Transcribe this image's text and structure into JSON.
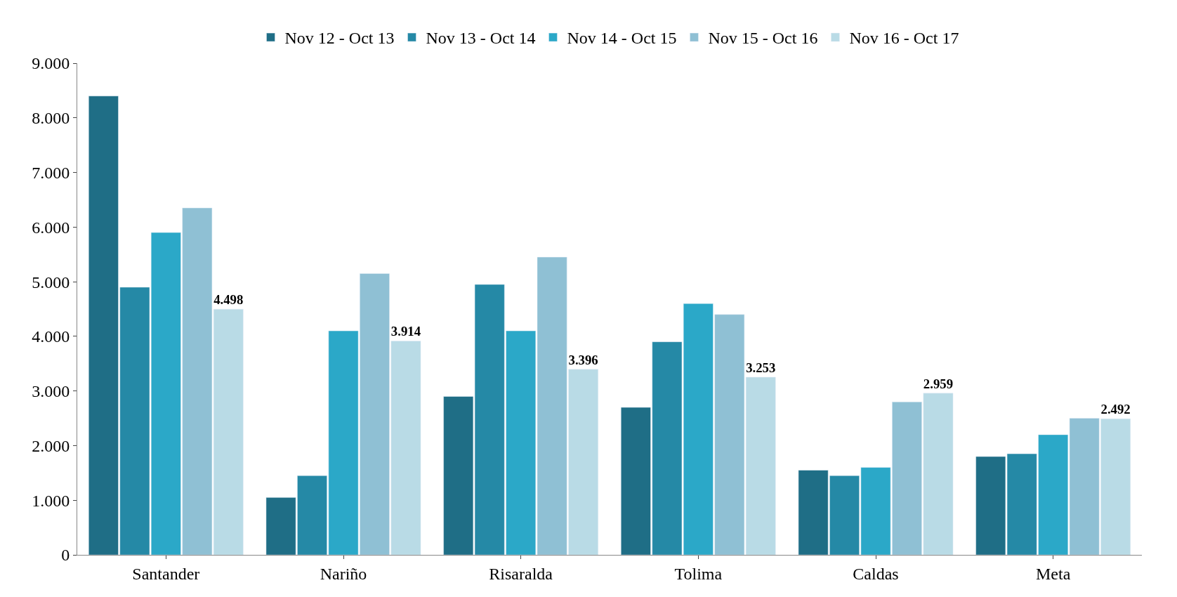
{
  "chart_data": {
    "type": "bar",
    "categories": [
      "Santander",
      "Nariño",
      "Risaralda",
      "Tolima",
      "Caldas",
      "Meta"
    ],
    "series": [
      {
        "name": "Nov 12 - Oct 13",
        "color": "#1f6e86",
        "values": [
          8400,
          1050,
          2900,
          2700,
          1550,
          1800
        ]
      },
      {
        "name": "Nov 13 - Oct 14",
        "color": "#2589a6",
        "values": [
          4900,
          1450,
          4950,
          3900,
          1450,
          1850
        ]
      },
      {
        "name": "Nov 14 - Oct 15",
        "color": "#2ba8c8",
        "values": [
          5900,
          4100,
          4100,
          4600,
          1600,
          2200
        ]
      },
      {
        "name": "Nov 15 - Oct 16",
        "color": "#8fc0d4",
        "values": [
          6350,
          5150,
          5450,
          4400,
          2800,
          2500
        ]
      },
      {
        "name": "Nov 16 - Oct 17",
        "color": "#b9dbe6",
        "values": [
          4498,
          3914,
          3396,
          3253,
          2959,
          2492
        ],
        "value_labels": [
          "4.498",
          "3.914",
          "3.396",
          "3.253",
          "2.959",
          "2.492"
        ]
      }
    ],
    "ylim": [
      0,
      9000
    ],
    "yticks": [
      {
        "value": 0,
        "label": "0"
      },
      {
        "value": 1000,
        "label": "1.000"
      },
      {
        "value": 2000,
        "label": "2.000"
      },
      {
        "value": 3000,
        "label": "3.000"
      },
      {
        "value": 4000,
        "label": "4.000"
      },
      {
        "value": 5000,
        "label": "5.000"
      },
      {
        "value": 6000,
        "label": "6.000"
      },
      {
        "value": 7000,
        "label": "7.000"
      },
      {
        "value": 8000,
        "label": "8.000"
      },
      {
        "value": 9000,
        "label": "9.000"
      }
    ],
    "legend": "top"
  }
}
